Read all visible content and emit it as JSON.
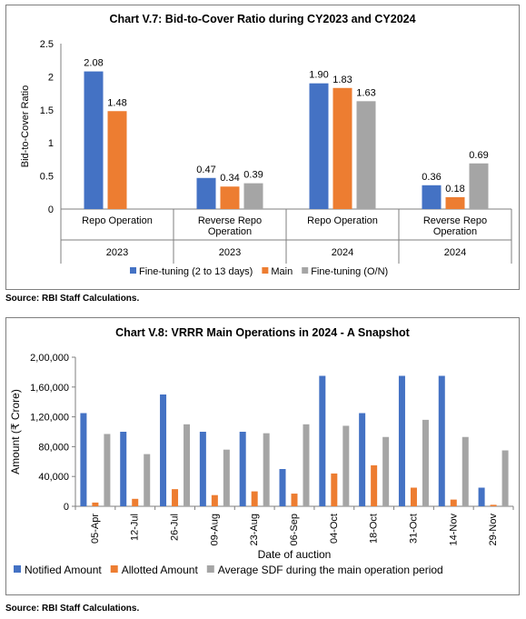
{
  "colors": {
    "blue": "#4472c4",
    "orange": "#ed7d31",
    "gray": "#a5a5a5",
    "axis": "#7f7f7f",
    "grid": "#d9d9d9"
  },
  "chart_data": [
    {
      "type": "bar",
      "title": "Chart V.7: Bid-to-Cover Ratio during CY2023 and CY2024",
      "ylabel": "Bid-to-Cover Ratio",
      "xlabel": "",
      "ylim": [
        0,
        2.5
      ],
      "yticks": [
        "0",
        "0.5",
        "1",
        "1.5",
        "2",
        "2.5"
      ],
      "ytick_values": [
        0,
        0.5,
        1,
        1.5,
        2,
        2.5
      ],
      "grid": false,
      "legend_position": "bottom",
      "categories": [
        "Repo Operation",
        "Reverse Repo Operation",
        "Repo Operation",
        "Reverse Repo Operation"
      ],
      "category_lines": [
        [
          "Repo Operation"
        ],
        [
          "Reverse Repo",
          "Operation"
        ],
        [
          "Repo Operation"
        ],
        [
          "Reverse Repo",
          "Operation"
        ]
      ],
      "groups": [
        "2023",
        "2023",
        "2024",
        "2024"
      ],
      "series": [
        {
          "name": "Fine-tuning (2 to 13 days)",
          "values": [
            2.08,
            0.47,
            1.9,
            0.36
          ],
          "labels": [
            "2.08",
            "0.47",
            "1.90",
            "0.36"
          ]
        },
        {
          "name": "Main",
          "values": [
            1.48,
            0.34,
            1.83,
            0.18
          ],
          "labels": [
            "1.48",
            "0.34",
            "1.83",
            "0.18"
          ]
        },
        {
          "name": "Fine-tuning (O/N)",
          "values": [
            null,
            0.39,
            1.63,
            0.69
          ],
          "labels": [
            "",
            "0.39",
            "1.63",
            "0.69"
          ]
        }
      ]
    },
    {
      "type": "bar",
      "title": "Chart V.8: VRRR Main Operations in 2024 - A Snapshot",
      "ylabel": "Amount (₹ Crore)",
      "xlabel": "Date of auction",
      "ylim": [
        0,
        200000
      ],
      "yticks": [
        "0",
        "40,000",
        "80,000",
        "1,20,000",
        "1,60,000",
        "2,00,000"
      ],
      "ytick_values": [
        0,
        40000,
        80000,
        120000,
        160000,
        200000
      ],
      "grid": false,
      "legend_position": "bottom",
      "categories": [
        "05-Apr",
        "12-Jul",
        "26-Jul",
        "09-Aug",
        "23-Aug",
        "06-Sep",
        "04-Oct",
        "18-Oct",
        "31-Oct",
        "14-Nov",
        "29-Nov"
      ],
      "series": [
        {
          "name": "Notified Amount",
          "values": [
            125000,
            100000,
            150000,
            100000,
            100000,
            50000,
            175000,
            125000,
            175000,
            175000,
            25000
          ]
        },
        {
          "name": "Allotted Amount",
          "values": [
            5000,
            10000,
            23000,
            15000,
            20000,
            17000,
            44000,
            55000,
            25000,
            9000,
            2000
          ]
        },
        {
          "name": "Average SDF during the main operation period",
          "values": [
            97000,
            70000,
            110000,
            76000,
            98000,
            110000,
            108000,
            93000,
            116000,
            93000,
            75000
          ]
        }
      ]
    }
  ],
  "sources": [
    "Source: RBI Staff Calculations.",
    "Source: RBI Staff Calculations."
  ]
}
